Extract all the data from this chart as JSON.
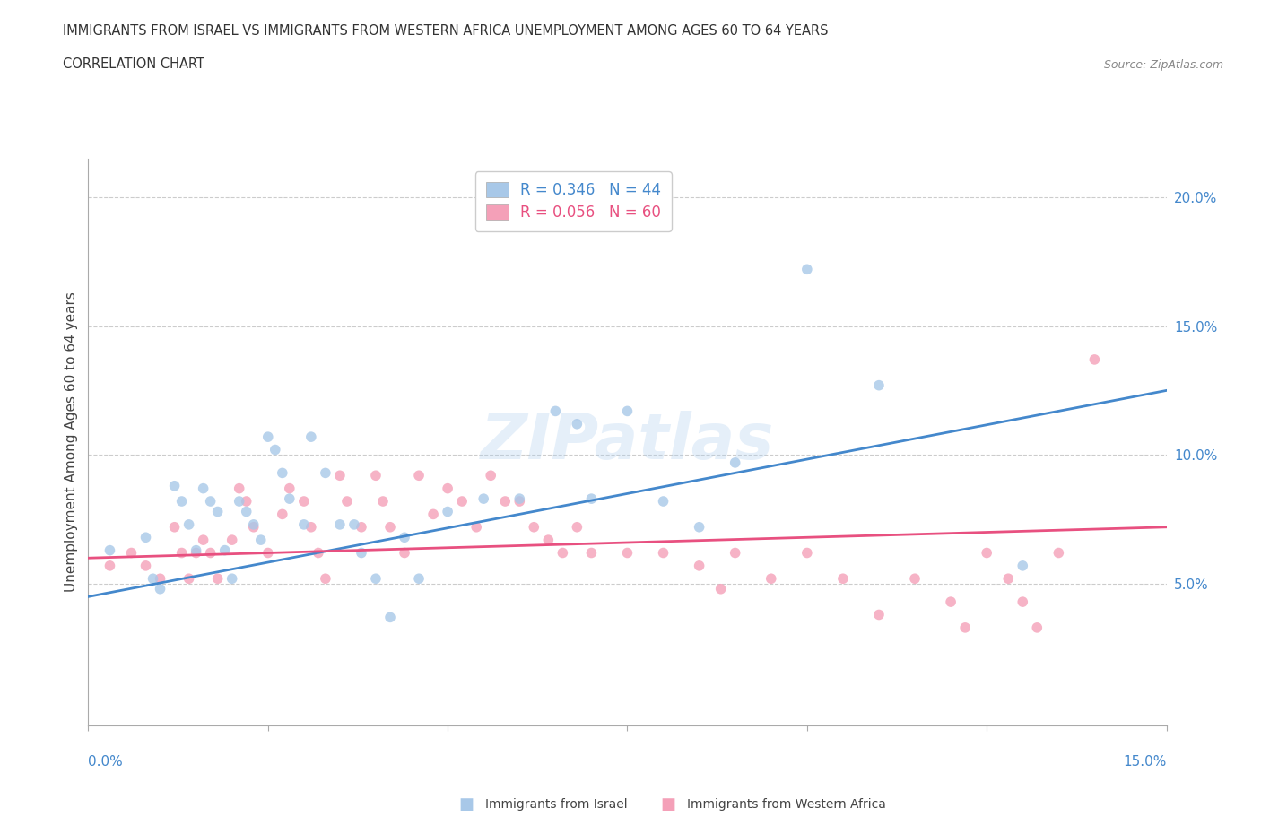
{
  "title_line1": "IMMIGRANTS FROM ISRAEL VS IMMIGRANTS FROM WESTERN AFRICA UNEMPLOYMENT AMONG AGES 60 TO 64 YEARS",
  "title_line2": "CORRELATION CHART",
  "source": "Source: ZipAtlas.com",
  "ylabel": "Unemployment Among Ages 60 to 64 years",
  "ytick_labels": [
    "5.0%",
    "10.0%",
    "15.0%",
    "20.0%"
  ],
  "ytick_values": [
    0.05,
    0.1,
    0.15,
    0.2
  ],
  "xlim": [
    0.0,
    0.15
  ],
  "ylim": [
    -0.005,
    0.215
  ],
  "legend_r_israel": "R = 0.346",
  "legend_n_israel": "N = 44",
  "legend_r_africa": "R = 0.056",
  "legend_n_africa": "N = 60",
  "color_israel": "#a8c8e8",
  "color_africa": "#f4a0b8",
  "color_israel_line": "#4488cc",
  "color_africa_line": "#e85080",
  "watermark": "ZIPatlas",
  "israel_x": [
    0.003,
    0.008,
    0.009,
    0.01,
    0.012,
    0.013,
    0.014,
    0.015,
    0.016,
    0.017,
    0.018,
    0.019,
    0.02,
    0.021,
    0.022,
    0.023,
    0.024,
    0.025,
    0.026,
    0.027,
    0.028,
    0.03,
    0.031,
    0.033,
    0.035,
    0.037,
    0.038,
    0.04,
    0.042,
    0.044,
    0.046,
    0.05,
    0.055,
    0.06,
    0.065,
    0.068,
    0.07,
    0.075,
    0.08,
    0.085,
    0.09,
    0.1,
    0.11,
    0.13
  ],
  "israel_y": [
    0.063,
    0.068,
    0.052,
    0.048,
    0.088,
    0.082,
    0.073,
    0.063,
    0.087,
    0.082,
    0.078,
    0.063,
    0.052,
    0.082,
    0.078,
    0.073,
    0.067,
    0.107,
    0.102,
    0.093,
    0.083,
    0.073,
    0.107,
    0.093,
    0.073,
    0.073,
    0.062,
    0.052,
    0.037,
    0.068,
    0.052,
    0.078,
    0.083,
    0.083,
    0.117,
    0.112,
    0.083,
    0.117,
    0.082,
    0.072,
    0.097,
    0.172,
    0.127,
    0.057
  ],
  "africa_x": [
    0.003,
    0.006,
    0.008,
    0.01,
    0.012,
    0.013,
    0.014,
    0.015,
    0.016,
    0.017,
    0.018,
    0.02,
    0.021,
    0.022,
    0.023,
    0.025,
    0.027,
    0.028,
    0.03,
    0.031,
    0.032,
    0.033,
    0.035,
    0.036,
    0.038,
    0.04,
    0.041,
    0.042,
    0.044,
    0.046,
    0.048,
    0.05,
    0.052,
    0.054,
    0.056,
    0.058,
    0.06,
    0.062,
    0.064,
    0.066,
    0.068,
    0.07,
    0.075,
    0.08,
    0.085,
    0.088,
    0.09,
    0.095,
    0.1,
    0.105,
    0.11,
    0.115,
    0.12,
    0.122,
    0.125,
    0.128,
    0.13,
    0.132,
    0.135,
    0.14
  ],
  "africa_y": [
    0.057,
    0.062,
    0.057,
    0.052,
    0.072,
    0.062,
    0.052,
    0.062,
    0.067,
    0.062,
    0.052,
    0.067,
    0.087,
    0.082,
    0.072,
    0.062,
    0.077,
    0.087,
    0.082,
    0.072,
    0.062,
    0.052,
    0.092,
    0.082,
    0.072,
    0.092,
    0.082,
    0.072,
    0.062,
    0.092,
    0.077,
    0.087,
    0.082,
    0.072,
    0.092,
    0.082,
    0.082,
    0.072,
    0.067,
    0.062,
    0.072,
    0.062,
    0.062,
    0.062,
    0.057,
    0.048,
    0.062,
    0.052,
    0.062,
    0.052,
    0.038,
    0.052,
    0.043,
    0.033,
    0.062,
    0.052,
    0.043,
    0.033,
    0.062,
    0.137
  ],
  "israel_trend_x": [
    0.0,
    0.15
  ],
  "israel_trend_y": [
    0.045,
    0.125
  ],
  "africa_trend_x": [
    0.0,
    0.15
  ],
  "africa_trend_y": [
    0.06,
    0.072
  ]
}
